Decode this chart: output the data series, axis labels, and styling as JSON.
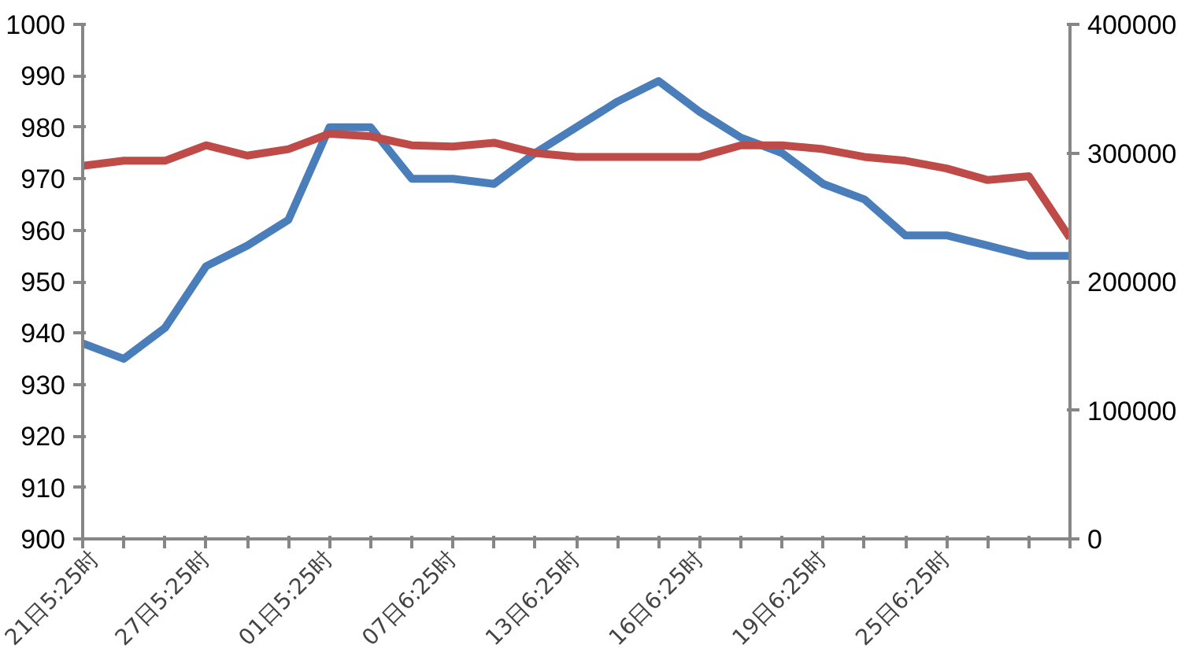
{
  "chart_data": {
    "type": "line",
    "categories": [
      "21日5:25时",
      null,
      null,
      "27日5:25时",
      null,
      null,
      "01日5:25时",
      null,
      null,
      "07日6:25时",
      null,
      null,
      "13日6:25时",
      null,
      null,
      "16日6:25时",
      null,
      null,
      "19日6:25时",
      null,
      null,
      "25日6:25时",
      null,
      null,
      null
    ],
    "series": [
      {
        "color": "#4a7ebb",
        "values": [
          938,
          935,
          941,
          953,
          957,
          962,
          980,
          980,
          970,
          970,
          969,
          975,
          980,
          985,
          989,
          983,
          978,
          975,
          969,
          966,
          959,
          959,
          957,
          955,
          955
        ]
      },
      {
        "color": "#be4b48",
        "axis": "y2",
        "values": [
          290000,
          294000,
          294000,
          306000,
          298000,
          303000,
          315000,
          313000,
          306000,
          305000,
          308000,
          300000,
          297000,
          297000,
          297000,
          297000,
          306000,
          306000,
          303000,
          297000,
          294000,
          288000,
          279000,
          282000,
          234000
        ]
      }
    ],
    "ylim": [
      900,
      1000
    ],
    "yticks": [
      900,
      910,
      920,
      930,
      940,
      950,
      960,
      970,
      980,
      990,
      1000
    ],
    "y2lim": [
      0,
      400000
    ],
    "y2ticks": [
      0,
      100000,
      200000,
      300000,
      400000
    ],
    "grid": false
  }
}
